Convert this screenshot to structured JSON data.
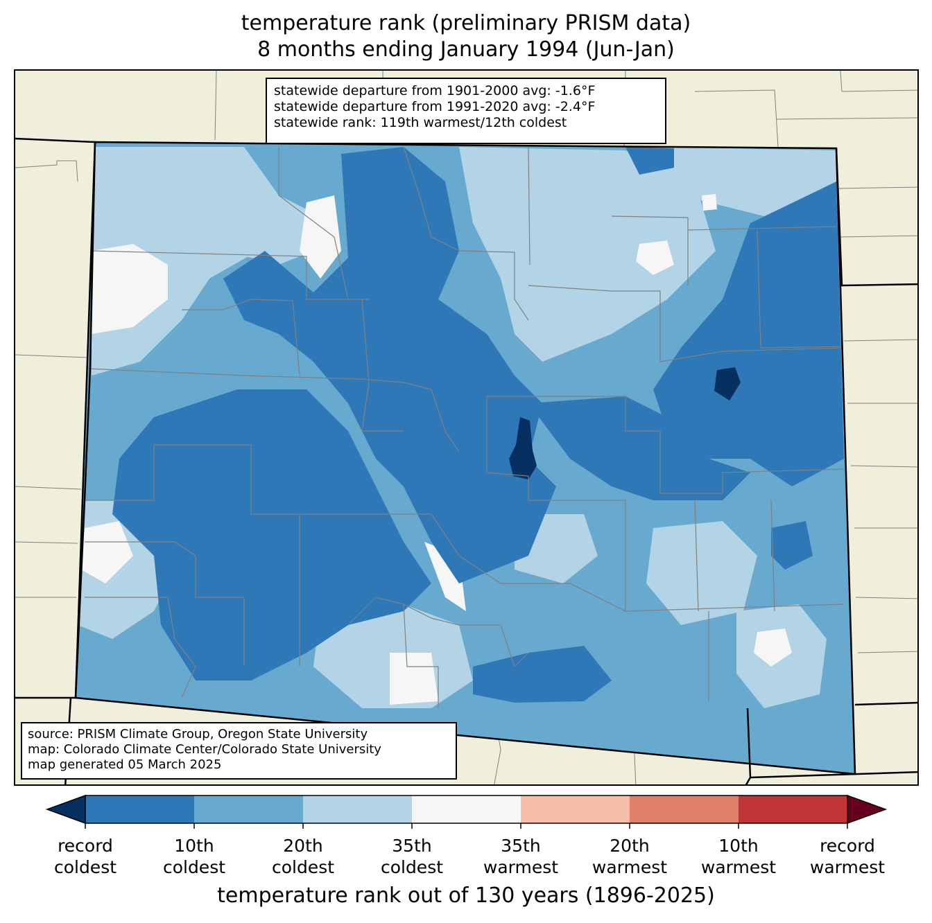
{
  "title": {
    "line1": "temperature rank (preliminary PRISM data)",
    "line2": "8 months ending January 1994 (Jun-Jan)"
  },
  "stats": {
    "line1": "statewide departure from 1901-2000 avg: -1.6°F",
    "line2": "statewide departure from 1991-2020 avg: -2.4°F",
    "line3": "statewide rank: 119th warmest/12th coldest"
  },
  "source": {
    "line1": "source: PRISM Climate Group, Oregon State University",
    "line2": "map: Colorado Climate Center/Colorado State University",
    "line3": "map generated 05 March 2025"
  },
  "colorbar": {
    "title": "temperature rank out of 130 years (1896-2025)",
    "under_color": "#053061",
    "over_color": "#67001f",
    "bins": [
      "#2f78b8",
      "#67a9cf",
      "#b2d4e6",
      "#f6f6f6",
      "#f8beac",
      "#e27f68",
      "#c03538"
    ],
    "ticks": [
      {
        "line1": "record",
        "line2": "coldest"
      },
      {
        "line1": "10th",
        "line2": "coldest"
      },
      {
        "line1": "20th",
        "line2": "coldest"
      },
      {
        "line1": "35th",
        "line2": "coldest"
      },
      {
        "line1": "35th",
        "line2": "warmest"
      },
      {
        "line1": "20th",
        "line2": "warmest"
      },
      {
        "line1": "10th",
        "line2": "warmest"
      },
      {
        "line1": "record",
        "line2": "warmest"
      }
    ]
  },
  "map_colors": {
    "land_outside": "#f0efdc",
    "border": "#000000",
    "county_line": "#808080"
  }
}
